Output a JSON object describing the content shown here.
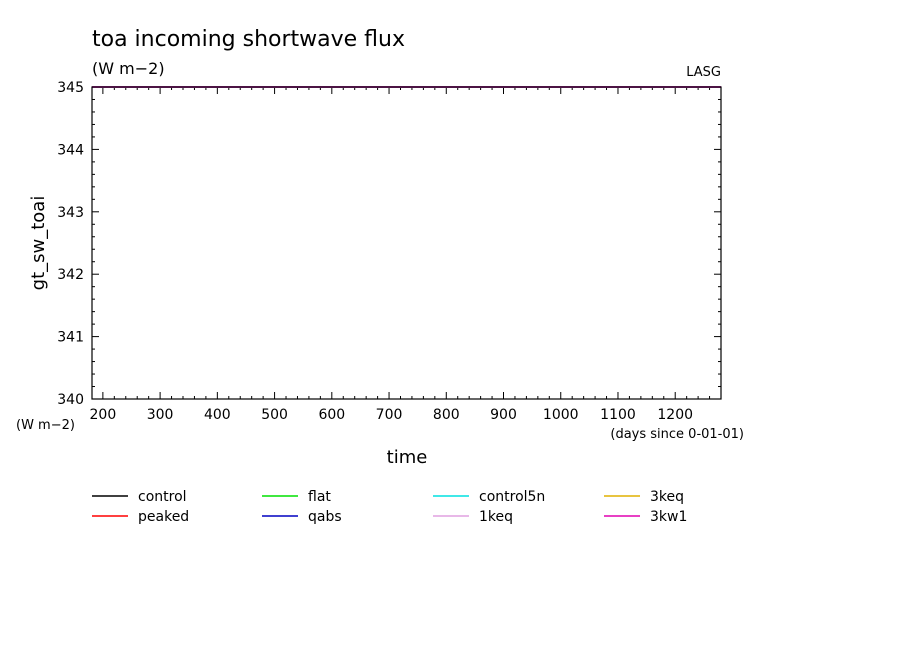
{
  "chart_data": {
    "type": "line",
    "title": "toa incoming shortwave flux",
    "subtitle": "(W m−2)",
    "credit": "LASG",
    "xlabel": "time",
    "x_units": "(days since 0-01-01)",
    "ylabel": "gt_sw_toai",
    "y_units": "(W m−2)",
    "xlim": [
      181,
      1280
    ],
    "ylim": [
      340,
      345
    ],
    "x_ticks": [
      200,
      300,
      400,
      500,
      600,
      700,
      800,
      900,
      1000,
      1100,
      1200
    ],
    "y_ticks": [
      340,
      341,
      342,
      343,
      344,
      345
    ],
    "grid": false,
    "legend_position": "bottom",
    "series": [
      {
        "name": "control",
        "color": "#000000",
        "x": [
          181,
          1280
        ],
        "y": [
          345,
          345
        ]
      },
      {
        "name": "flat",
        "color": "#00e000",
        "x": [
          181,
          1280
        ],
        "y": [
          345,
          345
        ]
      },
      {
        "name": "control5n",
        "color": "#00e0e0",
        "x": [
          181,
          1280
        ],
        "y": [
          345,
          345
        ]
      },
      {
        "name": "3keq",
        "color": "#e0b000",
        "x": [
          181,
          1280
        ],
        "y": [
          345,
          345
        ]
      },
      {
        "name": "peaked",
        "color": "#ff0000",
        "x": [
          181,
          1280
        ],
        "y": [
          345,
          345
        ]
      },
      {
        "name": "qabs",
        "color": "#0000c0",
        "x": [
          181,
          1280
        ],
        "y": [
          345,
          345
        ]
      },
      {
        "name": "1keq",
        "color": "#e0a0e0",
        "x": [
          181,
          1280
        ],
        "y": [
          345,
          345
        ]
      },
      {
        "name": "3kw1",
        "color": "#e000b0",
        "x": [
          181,
          1280
        ],
        "y": [
          345,
          345
        ]
      }
    ]
  }
}
